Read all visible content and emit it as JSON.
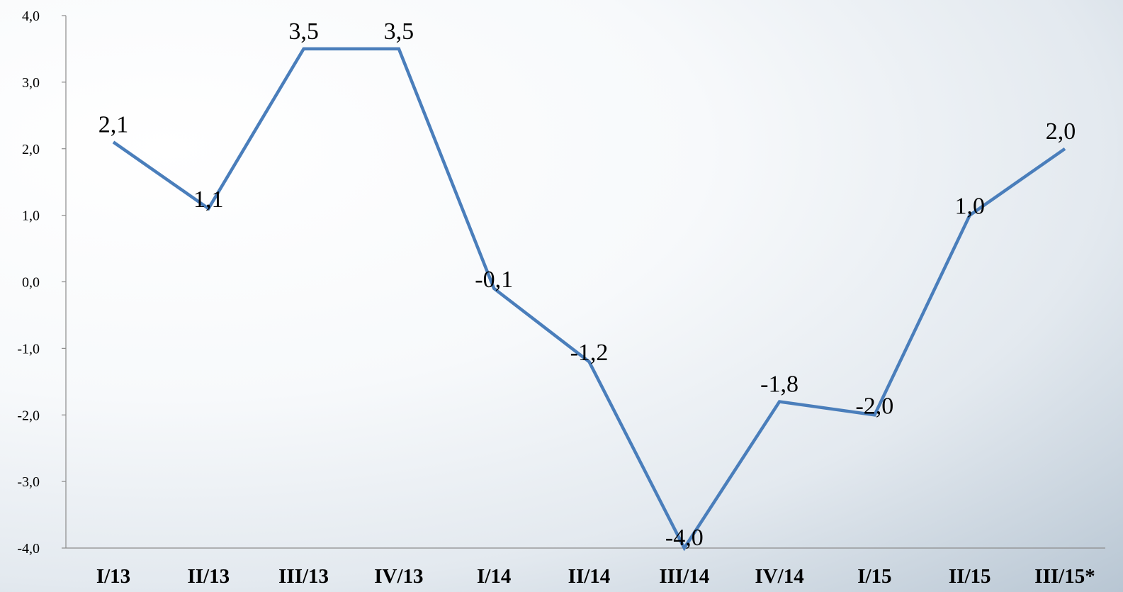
{
  "chart_data": {
    "type": "line",
    "categories": [
      "I/13",
      "II/13",
      "III/13",
      "IV/13",
      "I/14",
      "II/14",
      "III/14",
      "IV/14",
      "I/15",
      "II/15",
      "III/15*"
    ],
    "series": [
      {
        "values": [
          2.1,
          1.1,
          3.5,
          3.5,
          -0.1,
          -1.2,
          -4.0,
          -1.8,
          -2.0,
          1.0,
          2.0
        ],
        "data_labels": [
          "2,1",
          "1,1",
          "3,5",
          "3,5",
          "-0,1",
          "-1,2",
          "-4,0",
          "-1,8",
          "-2,0",
          "1,0",
          "2,0"
        ],
        "color": "#4a7ebb"
      }
    ],
    "ylim": [
      -4.0,
      4.0
    ],
    "yticks": [
      4.0,
      3.0,
      2.0,
      1.0,
      0.0,
      -1.0,
      -2.0,
      -3.0,
      -4.0
    ],
    "ytick_labels": [
      "4,0",
      "3,0",
      "2,0",
      "1,0",
      "0,0",
      "-1,0",
      "-2,0",
      "-3,0",
      "-4,0"
    ],
    "grid": false,
    "legend": "none",
    "title": "",
    "xlabel": "",
    "ylabel": ""
  }
}
